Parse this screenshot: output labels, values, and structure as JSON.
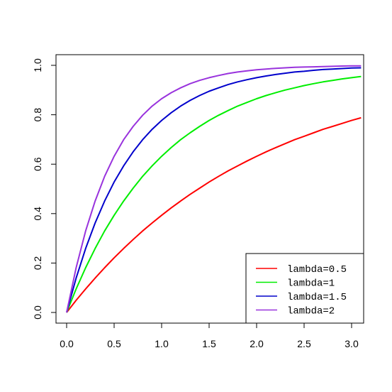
{
  "chart_data": {
    "type": "line",
    "title": "",
    "xlabel": "",
    "ylabel": "",
    "xlim": [
      0,
      3.1
    ],
    "ylim": [
      0,
      1
    ],
    "x_ticks": [
      "0.0",
      "0.5",
      "1.0",
      "1.5",
      "2.0",
      "2.5",
      "3.0"
    ],
    "y_ticks": [
      "0.0",
      "0.2",
      "0.4",
      "0.6",
      "0.8",
      "1.0"
    ],
    "grid": false,
    "legend_position": "bottom-right",
    "x": [
      0,
      0.1,
      0.2,
      0.3,
      0.4,
      0.5,
      0.6,
      0.7,
      0.8,
      0.9,
      1.0,
      1.1,
      1.2,
      1.3,
      1.4,
      1.5,
      1.6,
      1.7,
      1.8,
      1.9,
      2.0,
      2.1,
      2.2,
      2.3,
      2.4,
      2.5,
      2.6,
      2.7,
      2.8,
      2.9,
      3.0,
      3.1
    ],
    "series": [
      {
        "name": "lambda=0.5",
        "color": "#ff0000",
        "values": [
          0,
          0.049,
          0.095,
          0.139,
          0.181,
          0.221,
          0.259,
          0.295,
          0.33,
          0.362,
          0.393,
          0.423,
          0.451,
          0.478,
          0.503,
          0.528,
          0.551,
          0.573,
          0.593,
          0.613,
          0.632,
          0.65,
          0.667,
          0.683,
          0.699,
          0.713,
          0.727,
          0.741,
          0.753,
          0.765,
          0.777,
          0.788
        ]
      },
      {
        "name": "lambda=1",
        "color": "#00ee00",
        "values": [
          0,
          0.095,
          0.181,
          0.259,
          0.33,
          0.393,
          0.451,
          0.503,
          0.551,
          0.593,
          0.632,
          0.667,
          0.699,
          0.727,
          0.753,
          0.777,
          0.798,
          0.817,
          0.835,
          0.85,
          0.865,
          0.878,
          0.889,
          0.9,
          0.909,
          0.918,
          0.926,
          0.933,
          0.939,
          0.945,
          0.95,
          0.955
        ]
      },
      {
        "name": "lambda=1.5",
        "color": "#0000cc",
        "values": [
          0,
          0.139,
          0.259,
          0.362,
          0.451,
          0.528,
          0.593,
          0.65,
          0.699,
          0.741,
          0.777,
          0.808,
          0.835,
          0.858,
          0.878,
          0.895,
          0.909,
          0.922,
          0.933,
          0.942,
          0.95,
          0.957,
          0.963,
          0.968,
          0.973,
          0.976,
          0.98,
          0.983,
          0.985,
          0.987,
          0.989,
          0.99
        ]
      },
      {
        "name": "lambda=2",
        "color": "#9933dd",
        "values": [
          0,
          0.181,
          0.33,
          0.451,
          0.551,
          0.632,
          0.699,
          0.753,
          0.798,
          0.835,
          0.865,
          0.889,
          0.909,
          0.926,
          0.939,
          0.95,
          0.959,
          0.967,
          0.973,
          0.978,
          0.982,
          0.985,
          0.988,
          0.99,
          0.992,
          0.993,
          0.994,
          0.995,
          0.996,
          0.997,
          0.998,
          0.998
        ]
      }
    ]
  }
}
